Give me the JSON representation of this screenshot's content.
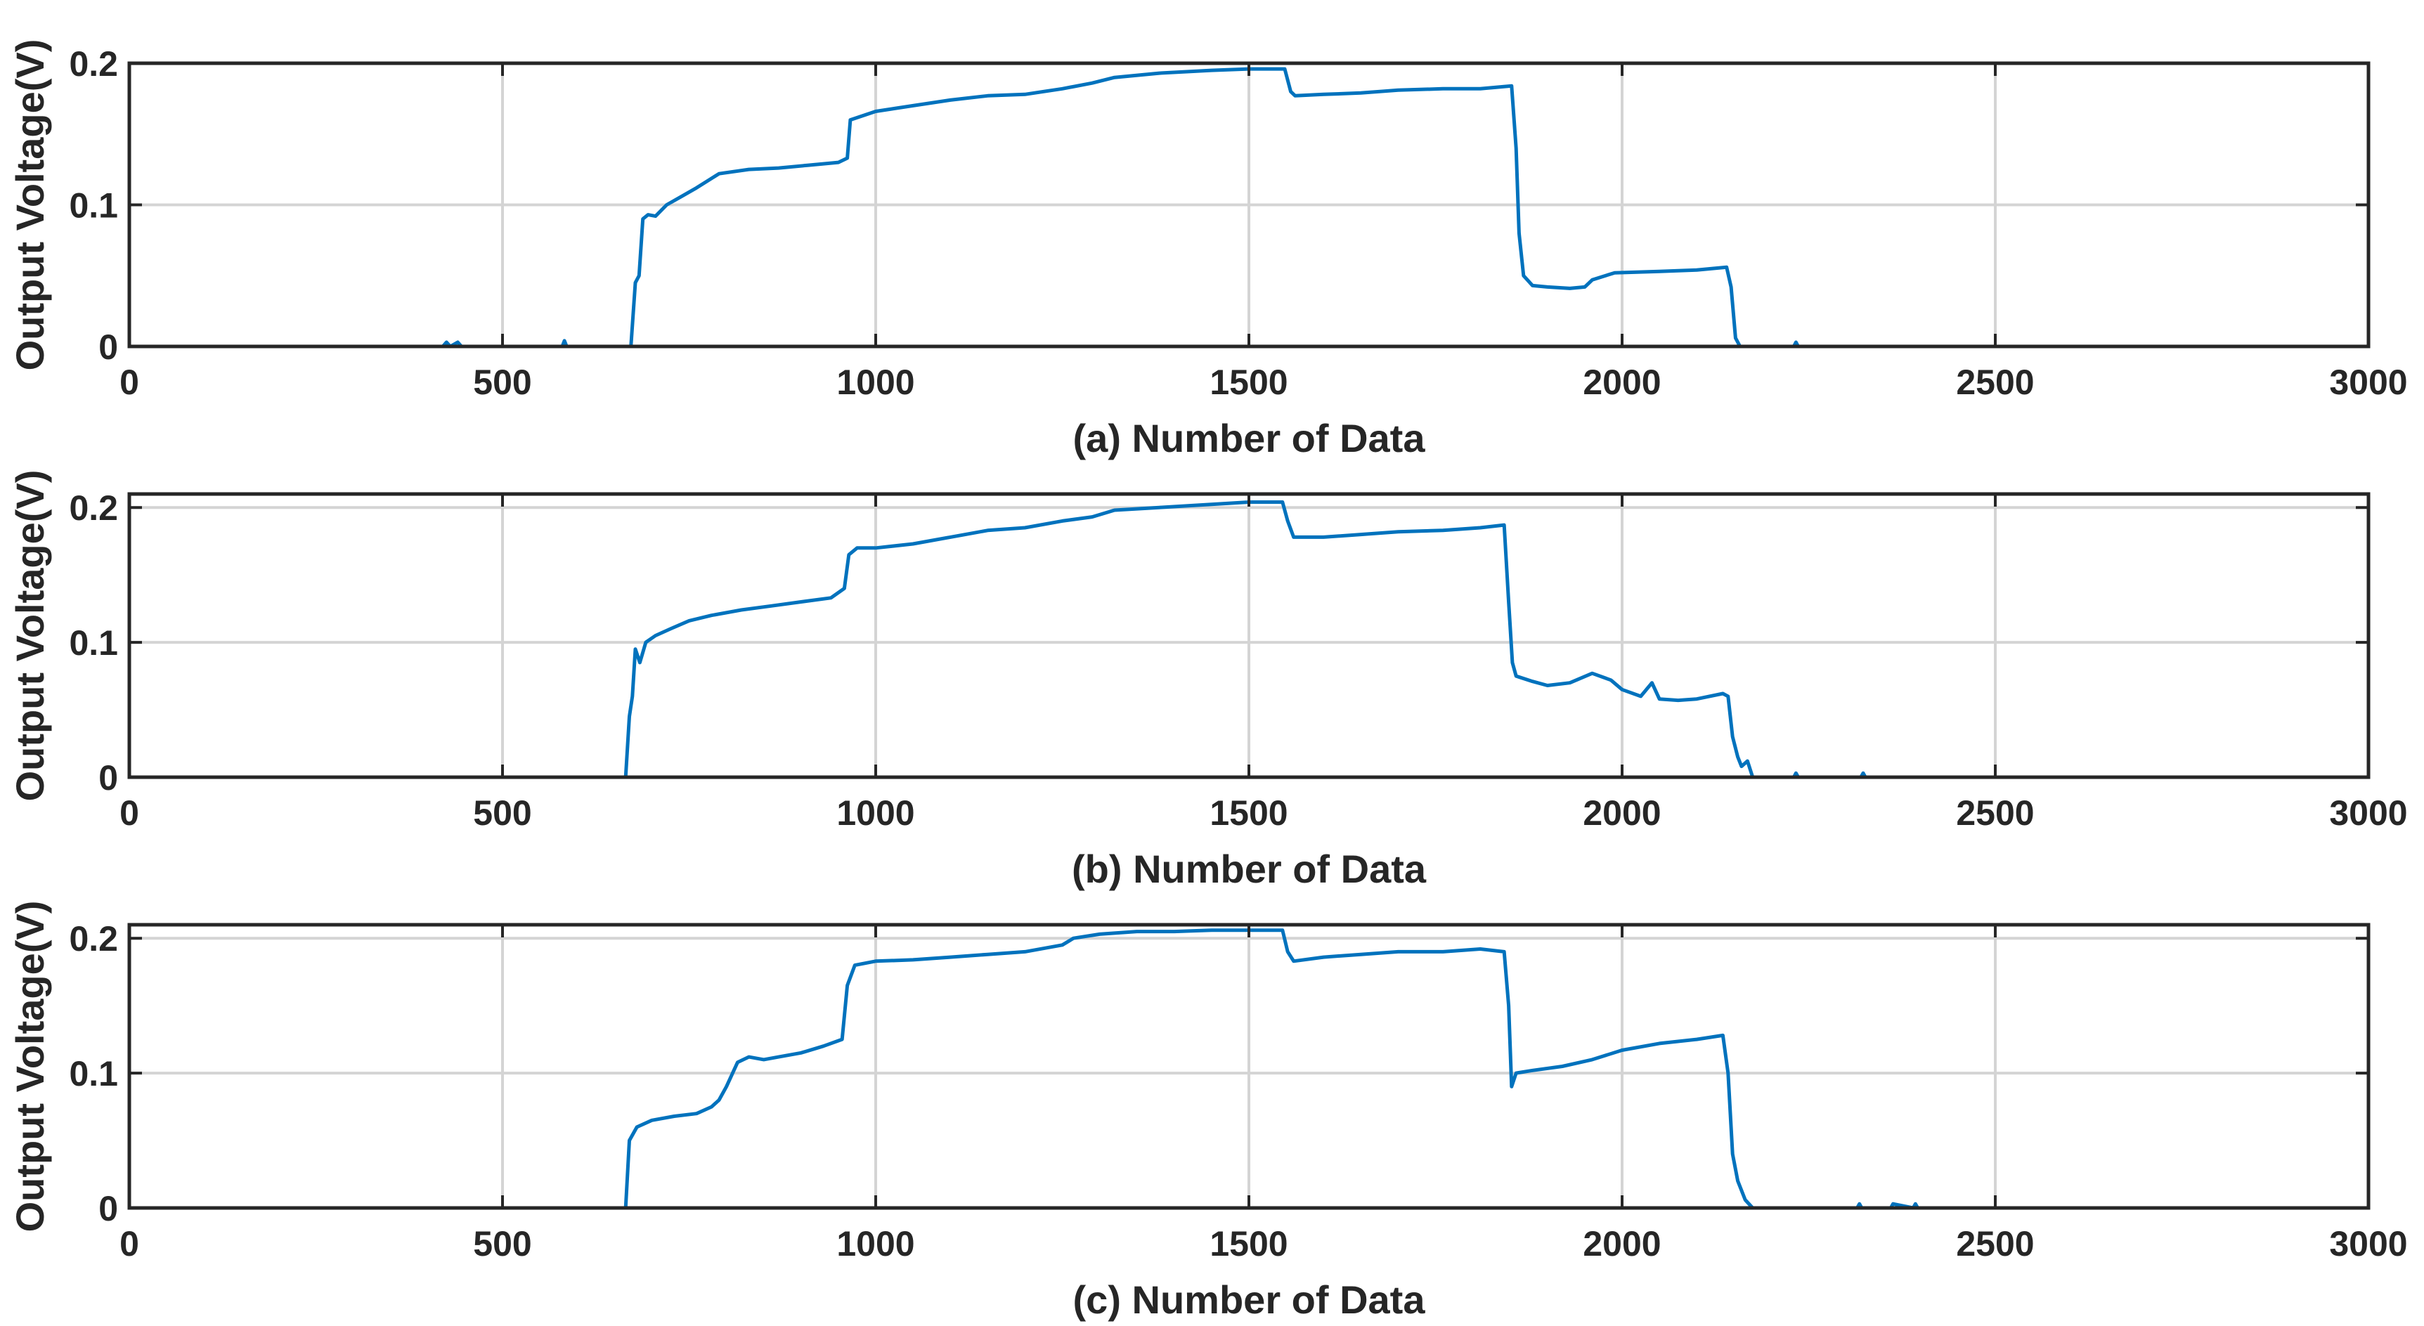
{
  "figure": {
    "background": "#ffffff",
    "series_color": "#0072BD",
    "grid_color": "#d4d4d4",
    "axis_color": "#262626"
  },
  "chart_data": [
    {
      "type": "line",
      "title": "",
      "xlabel": "(a) Number of Data",
      "ylabel": "Output Voltage(V)",
      "xlim": [
        0,
        3000
      ],
      "ylim": [
        0,
        0.2
      ],
      "xticks": [
        0,
        500,
        1000,
        1500,
        2000,
        2500,
        3000
      ],
      "yticks": [
        0,
        0.1,
        0.2
      ],
      "xtick_labels": [
        "0",
        "500",
        "1000",
        "1500",
        "2000",
        "2500",
        "3000"
      ],
      "ytick_labels": [
        "0",
        "0.1",
        "0.2"
      ],
      "grid": true,
      "series": [
        {
          "name": "Output Voltage",
          "x": [
            0,
            420,
            425,
            430,
            440,
            445,
            580,
            583,
            586,
            672,
            678,
            683,
            688,
            695,
            705,
            720,
            740,
            760,
            790,
            830,
            870,
            910,
            950,
            962,
            966,
            1000,
            1050,
            1100,
            1150,
            1200,
            1250,
            1290,
            1320,
            1380,
            1450,
            1500,
            1548,
            1556,
            1562,
            1600,
            1650,
            1700,
            1760,
            1810,
            1852,
            1858,
            1862,
            1868,
            1880,
            1900,
            1930,
            1950,
            1960,
            1990,
            2050,
            2100,
            2140,
            2146,
            2152,
            2158,
            2180,
            2200,
            2230,
            2233,
            2236,
            2260,
            2650
          ],
          "y": [
            0,
            0,
            0.003,
            0,
            0.003,
            0,
            0,
            0.004,
            0,
            0,
            0.045,
            0.05,
            0.09,
            0.093,
            0.092,
            0.1,
            0.106,
            0.112,
            0.122,
            0.125,
            0.126,
            0.128,
            0.13,
            0.133,
            0.16,
            0.166,
            0.17,
            0.174,
            0.177,
            0.178,
            0.182,
            0.186,
            0.19,
            0.193,
            0.195,
            0.196,
            0.196,
            0.18,
            0.177,
            0.178,
            0.179,
            0.181,
            0.182,
            0.182,
            0.184,
            0.14,
            0.08,
            0.05,
            0.043,
            0.042,
            0.041,
            0.042,
            0.047,
            0.052,
            0.053,
            0.054,
            0.056,
            0.042,
            0.006,
            0,
            0,
            0,
            0,
            0.003,
            0,
            0,
            0
          ]
        }
      ]
    },
    {
      "type": "line",
      "title": "",
      "xlabel": "(b) Number of Data",
      "ylabel": "Output Voltage(V)",
      "xlim": [
        0,
        3000
      ],
      "ylim": [
        0,
        0.21
      ],
      "xticks": [
        0,
        500,
        1000,
        1500,
        2000,
        2500,
        3000
      ],
      "yticks": [
        0,
        0.1,
        0.2
      ],
      "xtick_labels": [
        "0",
        "500",
        "1000",
        "1500",
        "2000",
        "2500",
        "3000"
      ],
      "ytick_labels": [
        "0",
        "0.1",
        "0.2"
      ],
      "grid": true,
      "series": [
        {
          "name": "Output Voltage",
          "x": [
            0,
            665,
            670,
            674,
            678,
            684,
            692,
            705,
            725,
            750,
            780,
            820,
            860,
            900,
            940,
            958,
            964,
            975,
            1000,
            1050,
            1100,
            1150,
            1200,
            1250,
            1290,
            1320,
            1380,
            1440,
            1500,
            1545,
            1552,
            1560,
            1600,
            1650,
            1700,
            1760,
            1810,
            1842,
            1848,
            1853,
            1858,
            1880,
            1900,
            1930,
            1960,
            1985,
            2000,
            2025,
            2040,
            2050,
            2075,
            2100,
            2135,
            2142,
            2148,
            2155,
            2160,
            2168,
            2175,
            2200,
            2230,
            2233,
            2236,
            2320,
            2323,
            2326,
            2650
          ],
          "y": [
            0,
            0,
            0.045,
            0.06,
            0.095,
            0.085,
            0.1,
            0.105,
            0.11,
            0.116,
            0.12,
            0.124,
            0.127,
            0.13,
            0.133,
            0.14,
            0.165,
            0.17,
            0.17,
            0.173,
            0.178,
            0.183,
            0.185,
            0.19,
            0.193,
            0.198,
            0.2,
            0.202,
            0.204,
            0.204,
            0.19,
            0.178,
            0.178,
            0.18,
            0.182,
            0.183,
            0.185,
            0.187,
            0.13,
            0.085,
            0.075,
            0.071,
            0.068,
            0.07,
            0.077,
            0.072,
            0.065,
            0.06,
            0.07,
            0.058,
            0.057,
            0.058,
            0.062,
            0.06,
            0.03,
            0.015,
            0.008,
            0.012,
            0,
            0,
            0,
            0.003,
            0,
            0,
            0.003,
            0,
            0
          ]
        }
      ]
    },
    {
      "type": "line",
      "title": "",
      "xlabel": "(c) Number of Data",
      "ylabel": "Output Voltage(V)",
      "xlim": [
        0,
        3000
      ],
      "ylim": [
        0,
        0.21
      ],
      "xticks": [
        0,
        500,
        1000,
        1500,
        2000,
        2500,
        3000
      ],
      "yticks": [
        0,
        0.1,
        0.2
      ],
      "xtick_labels": [
        "0",
        "500",
        "1000",
        "1500",
        "2000",
        "2500",
        "3000"
      ],
      "ytick_labels": [
        "0",
        "0.1",
        "0.2"
      ],
      "grid": true,
      "series": [
        {
          "name": "Output Voltage",
          "x": [
            0,
            665,
            670,
            680,
            700,
            730,
            760,
            780,
            790,
            800,
            815,
            830,
            850,
            870,
            900,
            930,
            955,
            962,
            972,
            1000,
            1050,
            1100,
            1150,
            1200,
            1250,
            1265,
            1300,
            1350,
            1400,
            1450,
            1500,
            1545,
            1552,
            1560,
            1600,
            1650,
            1700,
            1760,
            1810,
            1842,
            1848,
            1852,
            1858,
            1880,
            1920,
            1960,
            2000,
            2050,
            2100,
            2135,
            2142,
            2148,
            2155,
            2165,
            2175,
            2200,
            2315,
            2318,
            2321,
            2360,
            2363,
            2390,
            2393,
            2396,
            2630
          ],
          "y": [
            0,
            0,
            0.05,
            0.06,
            0.065,
            0.068,
            0.07,
            0.075,
            0.08,
            0.09,
            0.108,
            0.112,
            0.11,
            0.112,
            0.115,
            0.12,
            0.125,
            0.165,
            0.18,
            0.183,
            0.184,
            0.186,
            0.188,
            0.19,
            0.195,
            0.2,
            0.203,
            0.205,
            0.205,
            0.206,
            0.206,
            0.206,
            0.19,
            0.183,
            0.186,
            0.188,
            0.19,
            0.19,
            0.192,
            0.19,
            0.15,
            0.09,
            0.1,
            0.102,
            0.105,
            0.11,
            0.117,
            0.122,
            0.125,
            0.128,
            0.1,
            0.04,
            0.02,
            0.006,
            0,
            0,
            0,
            0.003,
            0,
            0,
            0.003,
            0,
            0.003,
            0,
            0
          ]
        }
      ]
    }
  ]
}
